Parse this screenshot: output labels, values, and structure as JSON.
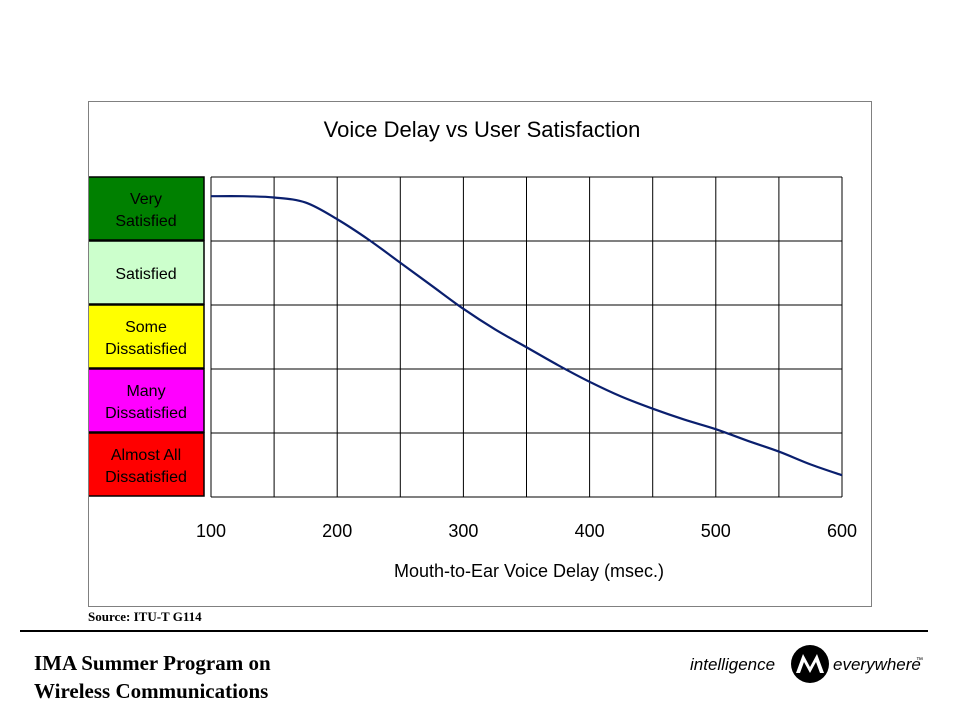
{
  "chart_data": {
    "type": "line",
    "title": "Voice Delay vs User Satisfaction",
    "xlabel": "Mouth-to-Ear Voice Delay (msec.)",
    "ylabel": "",
    "xlim": [
      100,
      600
    ],
    "x_ticks": [
      "100",
      "200",
      "300",
      "400",
      "500",
      "600"
    ],
    "x_gridlines": [
      100,
      150,
      200,
      250,
      300,
      350,
      400,
      450,
      500,
      550,
      600
    ],
    "grid": true,
    "bands": [
      {
        "label_lines": [
          "Very",
          "Satisfied"
        ],
        "color": "#008000"
      },
      {
        "label_lines": [
          "Satisfied"
        ],
        "color": "#ccffcc"
      },
      {
        "label_lines": [
          "Some",
          "Dissatisfied"
        ],
        "color": "#ffff00"
      },
      {
        "label_lines": [
          "Many",
          "Dissatisfied"
        ],
        "color": "#ff00ff"
      },
      {
        "label_lines": [
          "Almost All",
          "Dissatisfied"
        ],
        "color": "#ff0000"
      }
    ],
    "series": [
      {
        "color": "#0a1f6e",
        "points": [
          [
            100,
            4.7
          ],
          [
            125,
            4.7
          ],
          [
            150,
            4.68
          ],
          [
            175,
            4.6
          ],
          [
            200,
            4.34
          ],
          [
            225,
            4.02
          ],
          [
            250,
            3.66
          ],
          [
            275,
            3.3
          ],
          [
            300,
            2.94
          ],
          [
            325,
            2.62
          ],
          [
            350,
            2.34
          ],
          [
            375,
            2.06
          ],
          [
            400,
            1.8
          ],
          [
            425,
            1.57
          ],
          [
            450,
            1.38
          ],
          [
            475,
            1.21
          ],
          [
            500,
            1.06
          ],
          [
            525,
            0.88
          ],
          [
            550,
            0.71
          ],
          [
            575,
            0.51
          ],
          [
            600,
            0.34
          ]
        ]
      }
    ],
    "ylim": [
      0,
      5
    ],
    "y_note": "y is position in satisfaction band units: 0 = bottom of 'Almost All Dissatisfied', 5 = top of 'Very Satisfied'"
  },
  "source": "Source: ITU-T G114",
  "footer": {
    "title_line1": "IMA Summer Program on",
    "title_line2": "Wireless Communications",
    "brand_left": "intelligence",
    "brand_right": "everywhere",
    "brand_tm": "™"
  }
}
